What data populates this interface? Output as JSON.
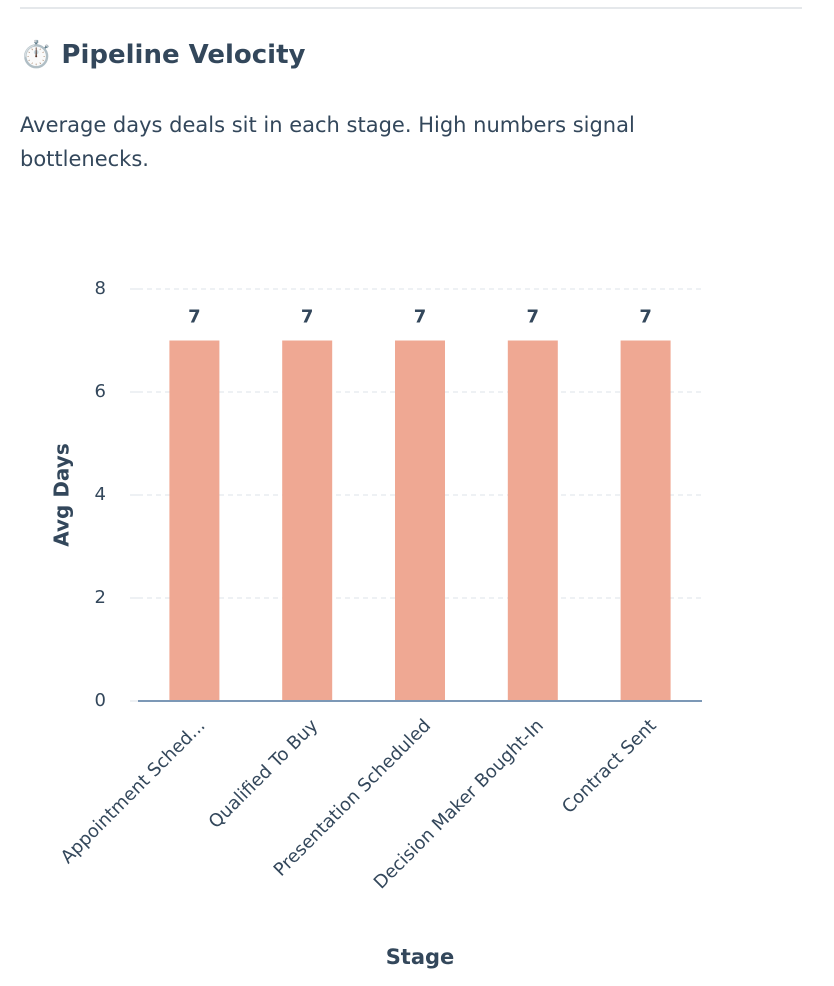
{
  "chart_data": {
    "type": "bar",
    "title": "⏱️ Pipeline Velocity",
    "subtitle": "Average days deals sit in each stage. High numbers signal bottlenecks.",
    "categories": [
      "Appointment Sched...",
      "Qualified To Buy",
      "Presentation Scheduled",
      "Decision Maker Bought-In",
      "Contract Sent"
    ],
    "values": [
      7,
      7,
      7,
      7,
      7
    ],
    "color": "#efa893",
    "x_label": "Stage",
    "y_label": "Avg Days",
    "ylim": [
      0,
      8
    ],
    "yticks": [
      0,
      2,
      4,
      6,
      8
    ],
    "grid": true
  }
}
